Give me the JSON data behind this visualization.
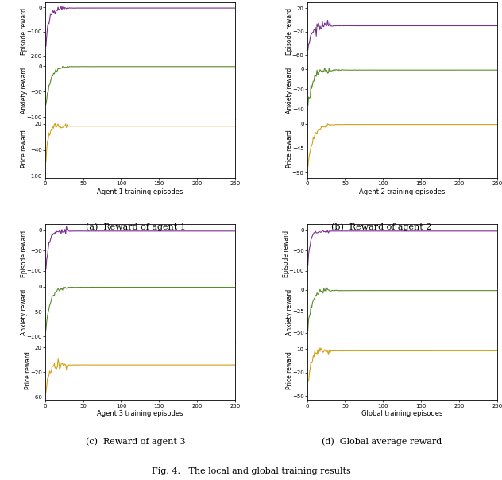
{
  "n_episodes": 250,
  "purple_color": "#7B2D8B",
  "green_color": "#5B8C2A",
  "orange_color": "#D4A017",
  "linewidth": 0.8,
  "panels": [
    {
      "title": "(a)  Reward of agent 1",
      "xlabel": "Agent 1 training episodes",
      "subplot_params": [
        {
          "ylim": [
            -220,
            20
          ],
          "yticks": [
            -200,
            -100,
            0
          ],
          "color": "purple",
          "init_val": -200,
          "settle_val": -3,
          "noise_scale": 6,
          "tau": 4
        },
        {
          "ylim": [
            -105,
            10
          ],
          "yticks": [
            -100,
            -50,
            0
          ],
          "color": "green",
          "init_val": -90,
          "settle_val": -1,
          "noise_scale": 2,
          "tau": 6
        },
        {
          "ylim": [
            -105,
            30
          ],
          "yticks": [
            -100,
            -40,
            20
          ],
          "color": "orange",
          "init_val": -100,
          "settle_val": 15,
          "noise_scale": 4,
          "tau": 3
        }
      ],
      "ylabel0": "Episode reward",
      "ylabel1": "Anxiety reward",
      "ylabel2": "Price reward"
    },
    {
      "title": "(b)  Reward of agent 2",
      "xlabel": "Agent 2 training episodes",
      "subplot_params": [
        {
          "ylim": [
            -70,
            30
          ],
          "yticks": [
            -60,
            -20,
            20
          ],
          "color": "purple",
          "init_val": -60,
          "settle_val": -10,
          "noise_scale": 5,
          "tau": 5
        },
        {
          "ylim": [
            -50,
            8
          ],
          "yticks": [
            -40,
            -20,
            0
          ],
          "color": "green",
          "init_val": -45,
          "settle_val": -1,
          "noise_scale": 2,
          "tau": 6
        },
        {
          "ylim": [
            -100,
            8
          ],
          "yticks": [
            -90,
            -45,
            0
          ],
          "color": "orange",
          "init_val": -90,
          "settle_val": -1,
          "noise_scale": 2,
          "tau": 7
        }
      ],
      "ylabel0": "Episode reward",
      "ylabel1": "Anxiety reward",
      "ylabel2": "Price reward"
    },
    {
      "title": "(c)  Reward of agent 3",
      "xlabel": "Agent 3 training episodes",
      "subplot_params": [
        {
          "ylim": [
            -130,
            15
          ],
          "yticks": [
            -100,
            -50,
            0
          ],
          "color": "purple",
          "init_val": -120,
          "settle_val": -2,
          "noise_scale": 4,
          "tau": 4
        },
        {
          "ylim": [
            -110,
            8
          ],
          "yticks": [
            -100,
            -50,
            0
          ],
          "color": "green",
          "init_val": -100,
          "settle_val": -1,
          "noise_scale": 2,
          "tau": 6
        },
        {
          "ylim": [
            -65,
            30
          ],
          "yticks": [
            -60,
            -20,
            20
          ],
          "color": "orange",
          "init_val": -65,
          "settle_val": -8,
          "noise_scale": 4,
          "tau": 4
        }
      ],
      "ylabel0": "Episode reward",
      "ylabel1": "Anxiety reward",
      "ylabel2": "Price reward"
    },
    {
      "title": "(d)  Global average reward",
      "xlabel": "Global training episodes",
      "subplot_params": [
        {
          "ylim": [
            -130,
            15
          ],
          "yticks": [
            -100,
            -50,
            0
          ],
          "color": "purple",
          "init_val": -120,
          "settle_val": -2,
          "noise_scale": 3,
          "tau": 3
        },
        {
          "ylim": [
            -60,
            8
          ],
          "yticks": [
            -50,
            -25,
            0
          ],
          "color": "green",
          "init_val": -55,
          "settle_val": -1,
          "noise_scale": 2,
          "tau": 5
        },
        {
          "ylim": [
            -55,
            20
          ],
          "yticks": [
            -50,
            -20,
            10
          ],
          "color": "orange",
          "init_val": -50,
          "settle_val": 8,
          "noise_scale": 3,
          "tau": 4
        }
      ],
      "ylabel0": "Episode reward",
      "ylabel1": "Anxiety reward",
      "ylabel2": "Price reward"
    }
  ],
  "fig_caption": "Fig. 4.   The local and global training results"
}
